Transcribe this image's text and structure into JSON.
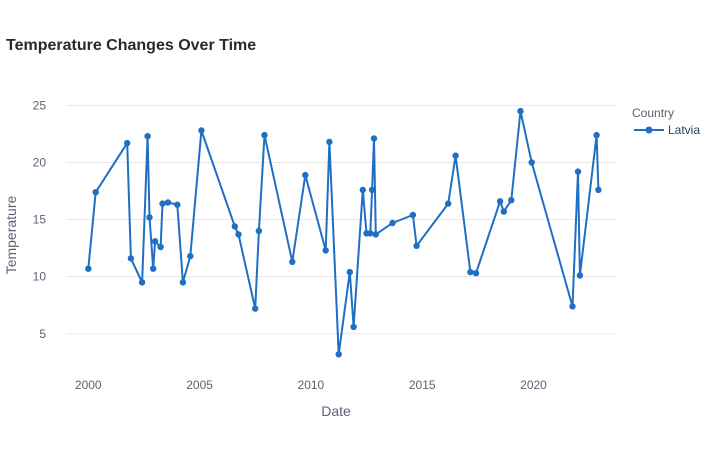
{
  "chart_data": {
    "type": "line",
    "title": "Temperature Changes Over Time",
    "xlabel": "Date",
    "ylabel": "Temperature",
    "x_ticks": [
      "2000",
      "2005",
      "2010",
      "2015",
      "2020"
    ],
    "y_ticks": [
      "5",
      "10",
      "15",
      "20",
      "25"
    ],
    "xlim": [
      "1999-01-01",
      "2023-10-01"
    ],
    "ylim": [
      2,
      26
    ],
    "grid": "horizontal",
    "legend": {
      "title": "Country",
      "placement": "top-right"
    },
    "series": [
      {
        "name": "Latvia",
        "color": "#1f6fc5",
        "points": [
          [
            "2000-01-01",
            10.7
          ],
          [
            "2000-05-01",
            17.4
          ],
          [
            "2001-10-01",
            21.7
          ],
          [
            "2001-12-01",
            11.6
          ],
          [
            "2002-06-01",
            9.5
          ],
          [
            "2002-09-01",
            22.3
          ],
          [
            "2002-10-01",
            15.2
          ],
          [
            "2002-12-01",
            10.7
          ],
          [
            "2003-01-01",
            13.1
          ],
          [
            "2003-04-01",
            12.6
          ],
          [
            "2003-05-01",
            16.4
          ],
          [
            "2003-08-01",
            16.5
          ],
          [
            "2004-01-01",
            16.3
          ],
          [
            "2004-04-01",
            9.5
          ],
          [
            "2004-08-01",
            11.8
          ],
          [
            "2005-02-01",
            22.8
          ],
          [
            "2006-08-01",
            14.4
          ],
          [
            "2006-10-01",
            13.7
          ],
          [
            "2007-07-01",
            7.2
          ],
          [
            "2007-09-01",
            14.0
          ],
          [
            "2007-12-01",
            22.4
          ],
          [
            "2009-03-01",
            11.3
          ],
          [
            "2009-10-01",
            18.9
          ],
          [
            "2010-09-01",
            12.3
          ],
          [
            "2010-11-01",
            21.8
          ],
          [
            "2011-04-01",
            3.2
          ],
          [
            "2011-10-01",
            10.4
          ],
          [
            "2011-12-01",
            5.6
          ],
          [
            "2012-05-01",
            17.6
          ],
          [
            "2012-07-01",
            13.8
          ],
          [
            "2012-09-01",
            13.8
          ],
          [
            "2012-10-01",
            17.6
          ],
          [
            "2012-11-01",
            22.1
          ],
          [
            "2012-12-01",
            13.7
          ],
          [
            "2013-09-01",
            14.7
          ],
          [
            "2014-08-01",
            15.4
          ],
          [
            "2014-10-01",
            12.7
          ],
          [
            "2016-03-01",
            16.4
          ],
          [
            "2016-07-01",
            20.6
          ],
          [
            "2017-03-01",
            10.4
          ],
          [
            "2017-06-01",
            10.3
          ],
          [
            "2018-07-01",
            16.6
          ],
          [
            "2018-09-01",
            15.7
          ],
          [
            "2019-01-01",
            16.7
          ],
          [
            "2019-06-01",
            24.5
          ],
          [
            "2019-12-01",
            20.0
          ],
          [
            "2021-10-01",
            7.4
          ],
          [
            "2022-01-01",
            19.2
          ],
          [
            "2022-02-01",
            10.1
          ],
          [
            "2022-11-01",
            22.4
          ],
          [
            "2022-12-01",
            17.6
          ]
        ]
      }
    ]
  }
}
